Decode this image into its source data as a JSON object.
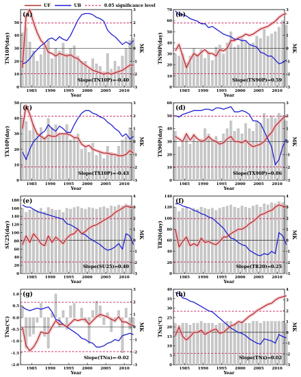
{
  "legend": {
    "uf": "UF",
    "ub": "UB",
    "sig": "0.05 significance level"
  },
  "colors": {
    "uf": "#b0302a",
    "ub": "#1f1fd0",
    "bar": "#c8c8c8",
    "sig": "#c2185b",
    "band": "#f4b6c2"
  },
  "chart_data": [
    {
      "type": "bar",
      "panel": "(a)",
      "ylabel": "TN10P(day)",
      "y2label": "MK",
      "xlabel": "Year",
      "slope": "Slope(TN10P)=-0.40",
      "xlim": [
        1982,
        2012
      ],
      "xticks": [
        1985,
        1990,
        1995,
        2000,
        2005,
        2010
      ],
      "ylim": [
        0,
        60
      ],
      "yticks": [
        0,
        10,
        20,
        30,
        40,
        50
      ],
      "y2lim": [
        -3,
        3
      ],
      "y2ticks": [
        -3,
        -2,
        -1,
        0,
        1,
        2,
        3
      ],
      "sig": [
        1.96,
        -1.96
      ],
      "bars": [
        42,
        46,
        35,
        28,
        20,
        25,
        32,
        36,
        22,
        30,
        28,
        34,
        26,
        30,
        32,
        24,
        20,
        20,
        14,
        22,
        18,
        16,
        12,
        26,
        14,
        20,
        16,
        24,
        30,
        36,
        38
      ],
      "uf": [
        -1.5,
        2.5,
        3,
        2,
        1.2,
        0.6,
        0.3,
        -0.3,
        -0.4,
        -0.6,
        -0.4,
        -0.5,
        -0.6,
        -0.5,
        -0.7,
        -0.8,
        -1.1,
        -1.3,
        -1.5,
        -1.7,
        -1.8,
        -1.9,
        -2.0,
        -1.9,
        -2.0,
        -1.9,
        -1.8,
        -1.7,
        -1.5,
        -1.3,
        -1.3
      ],
      "ub": [
        -1.2,
        -1.1,
        -0.8,
        -0.4,
        -0.1,
        0.2,
        0.4,
        0.7,
        0.8,
        0.6,
        0.9,
        0.7,
        0.6,
        1.0,
        1.6,
        2.2,
        2.6,
        2.7,
        2.7,
        2.6,
        2.4,
        2.3,
        2.1,
        1.4,
        1.1,
        0.9,
        0.6,
        0.3,
        0.5,
        0.3,
        0.6
      ]
    },
    {
      "type": "bar",
      "panel": "(b)",
      "ylabel": "TN90P(day)",
      "y2label": "MK",
      "xlabel": "Year",
      "slope": "Slope(TN90P)=0.59",
      "xlim": [
        1982,
        2012
      ],
      "xticks": [
        1985,
        1990,
        1995,
        2000,
        2005,
        2010
      ],
      "ylim": [
        0,
        70
      ],
      "yticks": [
        0,
        10,
        20,
        30,
        40,
        50,
        60,
        70
      ],
      "y2lim": [
        -3,
        3
      ],
      "y2ticks": [
        -3,
        -2,
        -1,
        0,
        1,
        2,
        3
      ],
      "sig": [
        1.96,
        -1.96
      ],
      "bars": [
        30,
        28,
        30,
        22,
        28,
        35,
        30,
        34,
        26,
        32,
        24,
        36,
        38,
        30,
        40,
        50,
        36,
        38,
        44,
        42,
        38,
        40,
        46,
        44,
        52,
        46,
        48,
        50,
        54,
        60,
        56
      ],
      "uf": [
        -0.2,
        0.3,
        -0.6,
        -1.5,
        -0.9,
        -0.4,
        -0.6,
        -0.3,
        -0.1,
        -0.4,
        -0.4,
        -0.6,
        -0.1,
        -0.2,
        0.0,
        0.6,
        0.6,
        0.8,
        0.9,
        1.1,
        1.0,
        1.1,
        1.3,
        1.5,
        1.6,
        1.7,
        1.9,
        2.1,
        2.4,
        2.6,
        2.7
      ],
      "ub": [
        2.9,
        2.6,
        2.6,
        2.5,
        2.3,
        2.2,
        2.1,
        1.9,
        1.9,
        1.6,
        1.7,
        1.5,
        1.3,
        1.1,
        1.0,
        0.9,
        0.7,
        0.7,
        0.6,
        0.6,
        0.3,
        0.2,
        0.1,
        -0.3,
        -0.4,
        -0.6,
        -0.6,
        -0.9,
        -1.2,
        -1.1,
        -0.9
      ]
    },
    {
      "type": "bar",
      "panel": "(c)",
      "ylabel": "TX10P(day)",
      "y2label": "MK",
      "xlabel": "Year",
      "slope": "Slope(TX10P)=-0.43",
      "xlim": [
        1982,
        2012
      ],
      "xticks": [
        1985,
        1990,
        1995,
        2000,
        2005,
        2010
      ],
      "ylim": [
        0,
        50
      ],
      "yticks": [
        0,
        10,
        20,
        30,
        40,
        50
      ],
      "y2lim": [
        -3,
        3
      ],
      "y2ticks": [
        -3,
        -2,
        -1,
        0,
        1,
        2,
        3
      ],
      "sig": [
        1.96,
        -1.96
      ],
      "bars": [
        40,
        38,
        32,
        36,
        30,
        34,
        28,
        40,
        34,
        36,
        30,
        30,
        36,
        26,
        28,
        30,
        20,
        22,
        18,
        24,
        16,
        18,
        14,
        22,
        18,
        16,
        22,
        26,
        28,
        34,
        32
      ],
      "uf": [
        1.0,
        2.8,
        2.1,
        1.2,
        0.6,
        0.4,
        0.2,
        0.5,
        0.4,
        0.4,
        0.6,
        0.6,
        0.6,
        0.5,
        0.3,
        0.3,
        -0.2,
        -0.4,
        -0.3,
        -0.6,
        -0.7,
        -0.8,
        -0.9,
        -0.9,
        -1.0,
        -1.0,
        -1.1,
        -1.1,
        -1.0,
        -0.7,
        -0.9
      ],
      "ub": [
        -0.8,
        -1.4,
        -0.6,
        0.0,
        0.3,
        0.6,
        0.8,
        1.3,
        1.0,
        0.8,
        1.2,
        1.0,
        0.7,
        0.7,
        1.3,
        1.8,
        2.2,
        2.4,
        2.4,
        2.2,
        2.1,
        1.9,
        1.8,
        1.5,
        1.3,
        1.0,
        0.8,
        0.4,
        0.6,
        0.2,
        0.4
      ]
    },
    {
      "type": "bar",
      "panel": "(d)",
      "ylabel": "TX90P(day)",
      "y2label": "MK",
      "xlabel": "Year",
      "slope": "Slope(TX90P)=0.86",
      "xlim": [
        1982,
        2012
      ],
      "xticks": [
        1985,
        1990,
        1995,
        2000,
        2005,
        2010
      ],
      "ylim": [
        0,
        60
      ],
      "yticks": [
        0,
        10,
        20,
        30,
        40,
        50,
        60
      ],
      "y2lim": [
        -3,
        3
      ],
      "y2ticks": [
        -3,
        -2,
        -1,
        0,
        1,
        2,
        3
      ],
      "sig": [
        1.96,
        -1.96
      ],
      "bars": [
        38,
        26,
        30,
        34,
        28,
        36,
        30,
        32,
        40,
        36,
        32,
        34,
        30,
        36,
        40,
        46,
        38,
        40,
        36,
        44,
        40,
        38,
        46,
        44,
        52,
        48,
        50,
        48,
        52,
        50,
        46
      ],
      "uf": [
        0.4,
        0.2,
        0.0,
        0.6,
        0.1,
        0.5,
        0.2,
        0.0,
        0.1,
        0.4,
        0.1,
        0.0,
        -0.2,
        -0.1,
        0.2,
        0.4,
        0.0,
        0.0,
        -0.1,
        0.1,
        -0.2,
        -0.4,
        -0.3,
        -0.2,
        0.0,
        0.4,
        0.7,
        1.2,
        1.5,
        1.8,
        2.0
      ],
      "ub": [
        2.0,
        1.9,
        2.1,
        2.2,
        2.3,
        2.4,
        2.4,
        2.4,
        2.5,
        2.5,
        2.4,
        2.6,
        2.6,
        2.5,
        2.6,
        2.7,
        2.3,
        2.3,
        2.4,
        2.3,
        2.1,
        1.6,
        1.6,
        1.4,
        0.8,
        0.2,
        -0.4,
        -1.8,
        -1.4,
        -0.4,
        0.2
      ]
    },
    {
      "type": "bar",
      "panel": "(e)",
      "ylabel": "SU25(day)",
      "y2label": "MK",
      "xlabel": "Year",
      "slope": "Slope(SU25)=0.40",
      "xlim": [
        1982,
        2012
      ],
      "xticks": [
        1985,
        1990,
        1995,
        2000,
        2005,
        2010
      ],
      "ylim": [
        0,
        190
      ],
      "yticks": [
        0,
        20,
        40,
        60,
        80,
        100,
        120,
        140,
        160,
        180
      ],
      "y2lim": [
        -3,
        4
      ],
      "y2ticks": [
        -3,
        -2,
        -1,
        0,
        1,
        2,
        3,
        4
      ],
      "sig": [
        1.96,
        -1.96
      ],
      "bars": [
        160,
        150,
        156,
        158,
        155,
        160,
        152,
        162,
        158,
        155,
        156,
        150,
        160,
        158,
        162,
        164,
        160,
        158,
        162,
        160,
        158,
        162,
        164,
        160,
        166,
        164,
        168,
        166,
        170,
        168,
        164
      ],
      "uf": [
        -0.4,
        0.4,
        -0.2,
        0.6,
        0.2,
        -0.3,
        -0.5,
        0.4,
        -0.2,
        0.3,
        0.0,
        -0.3,
        0.2,
        0.5,
        0.6,
        1.0,
        0.6,
        0.8,
        1.1,
        1.3,
        1.4,
        1.6,
        1.8,
        2.0,
        2.2,
        2.5,
        2.7,
        2.9,
        3.1,
        3.0,
        3.0
      ],
      "ub": [
        3.2,
        3.0,
        3.0,
        2.8,
        2.6,
        2.5,
        2.4,
        2.3,
        2.2,
        2.1,
        2.0,
        1.9,
        1.5,
        1.4,
        1.2,
        1.0,
        0.6,
        0.5,
        0.2,
        0.0,
        -0.2,
        -0.4,
        -0.7,
        -0.9,
        -0.8,
        -0.6,
        -0.3,
        -0.8,
        0.6,
        0.4,
        -0.4
      ]
    },
    {
      "type": "bar",
      "panel": "(f)",
      "ylabel": "TR20(day)",
      "y2label": "MK",
      "xlabel": "Year",
      "slope": "Slope(TR20)=0.25",
      "xlim": [
        1982,
        2012
      ],
      "xticks": [
        1985,
        1990,
        1995,
        2000,
        2005,
        2010
      ],
      "ylim": [
        0,
        140
      ],
      "yticks": [
        0,
        20,
        40,
        60,
        80,
        100,
        120,
        140
      ],
      "y2lim": [
        -3,
        4
      ],
      "y2ticks": [
        -3,
        -2,
        -1,
        0,
        1,
        2,
        3,
        4
      ],
      "sig": [
        1.96,
        -1.96
      ],
      "bars": [
        120,
        112,
        118,
        120,
        114,
        118,
        116,
        120,
        118,
        116,
        118,
        114,
        118,
        120,
        122,
        124,
        120,
        118,
        122,
        120,
        118,
        122,
        124,
        120,
        126,
        124,
        128,
        126,
        130,
        128,
        124
      ],
      "uf": [
        1.0,
        -0.6,
        -0.1,
        0.3,
        -0.5,
        -0.3,
        -0.5,
        0.2,
        -0.2,
        -0.1,
        -0.3,
        -0.4,
        -0.1,
        0.3,
        0.3,
        0.6,
        0.8,
        1.0,
        1.0,
        1.2,
        1.5,
        1.7,
        2.0,
        2.3,
        2.4,
        2.6,
        2.7,
        3.0,
        3.2,
        3.1,
        3.0
      ],
      "ub": [
        3.3,
        3.3,
        3.1,
        3.0,
        2.9,
        2.7,
        2.6,
        2.4,
        2.3,
        2.1,
        2.0,
        1.7,
        1.4,
        1.1,
        0.6,
        0.2,
        0.1,
        -0.2,
        -0.4,
        -0.5,
        -0.9,
        -1.1,
        -1.3,
        -1.4,
        -1.2,
        -1.3,
        -1.0,
        -1.2,
        0.7,
        0.4,
        -0.4
      ]
    },
    {
      "type": "bar",
      "panel": "(g)",
      "ylabel": "TNn(℃)",
      "y2label": "MK",
      "xlabel": "Year",
      "slope": "Slope(TNn)=-0.02",
      "xlim": [
        1982,
        2012
      ],
      "xticks": [
        1985,
        1990,
        1995,
        2000,
        2005,
        2010
      ],
      "ylim": [
        -2.0,
        1.2
      ],
      "yticks": [
        -2.0,
        -1.5,
        -1.0,
        -0.5,
        0.0,
        0.5,
        1.0
      ],
      "y2lim": [
        -3,
        3
      ],
      "y2ticks": [
        -3,
        -2,
        -1,
        0,
        1,
        2,
        3
      ],
      "sig": [
        1.96,
        -1.96
      ],
      "bars": [
        0.5,
        -1.3,
        -0.8,
        -0.7,
        -0.2,
        0.6,
        -0.8,
        -1.3,
        0.2,
        1.0,
        -0.4,
        0.3,
        -0.5,
        0.5,
        0.6,
        0.0,
        0.4,
        -0.2,
        -1.1,
        0.3,
        0.7,
        0.5,
        -0.3,
        0.2,
        -0.6,
        -0.2,
        0.3,
        -1.5,
        0.4,
        -0.5,
        -0.4
      ],
      "uf": [
        0.0,
        -1.5,
        -1.9,
        -1.6,
        -1.1,
        -0.4,
        -0.5,
        -0.5,
        0.0,
        0.5,
        0.2,
        0.2,
        0.0,
        0.3,
        0.6,
        0.5,
        0.6,
        0.6,
        0.2,
        0.5,
        0.8,
        1.0,
        0.9,
        0.8,
        0.6,
        0.5,
        0.8,
        0.4,
        0.4,
        0.2,
        0.1
      ],
      "ub": [
        1.6,
        1.4,
        1.3,
        1.4,
        1.5,
        1.4,
        1.5,
        1.6,
        1.2,
        0.6,
        0.5,
        0.2,
        0.0,
        -0.2,
        -0.4,
        -0.6,
        -0.9,
        -1.0,
        -1.2,
        -1.3,
        -1.6,
        -1.6,
        -1.5,
        -1.3,
        -1.2,
        -1.0,
        -1.1,
        -0.7,
        -0.6,
        -0.5,
        -0.6
      ]
    },
    {
      "type": "bar",
      "panel": "(h)",
      "ylabel": "TNx(℃)",
      "y2label": "MK",
      "xlabel": "Year",
      "slope": "Slope(TNx)=0.02",
      "xlim": [
        1982,
        2012
      ],
      "xticks": [
        1985,
        1990,
        1995,
        2000,
        2005,
        2010
      ],
      "ylim": [
        0,
        40
      ],
      "yticks": [
        0,
        5,
        10,
        15,
        20,
        25,
        30,
        35,
        40
      ],
      "y2lim": [
        -3,
        4
      ],
      "y2ticks": [
        -3,
        -2,
        -1,
        0,
        1,
        2,
        3,
        4
      ],
      "sig": [
        1.96,
        -1.96
      ],
      "bars": [
        22,
        21,
        22,
        22,
        21,
        22,
        22,
        23,
        22,
        22,
        22,
        21,
        22,
        22,
        23,
        23,
        22,
        22,
        23,
        22,
        22,
        23,
        23,
        22,
        23,
        23,
        23,
        23,
        23,
        23,
        22
      ],
      "uf": [
        -0.3,
        0.5,
        -0.4,
        -0.7,
        -0.4,
        0.0,
        0.0,
        0.2,
        -0.2,
        0.0,
        0.2,
        0.3,
        -0.1,
        0.0,
        0.3,
        0.6,
        0.7,
        1.0,
        0.9,
        1.2,
        1.5,
        1.7,
        2.0,
        2.2,
        2.4,
        2.6,
        2.7,
        3.0,
        3.2,
        3.3,
        3.4
      ],
      "ub": [
        3.7,
        3.6,
        3.2,
        3.1,
        2.9,
        2.8,
        2.6,
        2.4,
        2.2,
        2.0,
        1.9,
        1.6,
        1.3,
        1.0,
        0.7,
        0.4,
        0.2,
        0.0,
        -0.1,
        -0.3,
        -0.6,
        -0.8,
        -1.0,
        -1.1,
        -0.6,
        -0.7,
        -0.8,
        -1.0,
        -0.2,
        -0.4,
        -0.5
      ]
    }
  ]
}
